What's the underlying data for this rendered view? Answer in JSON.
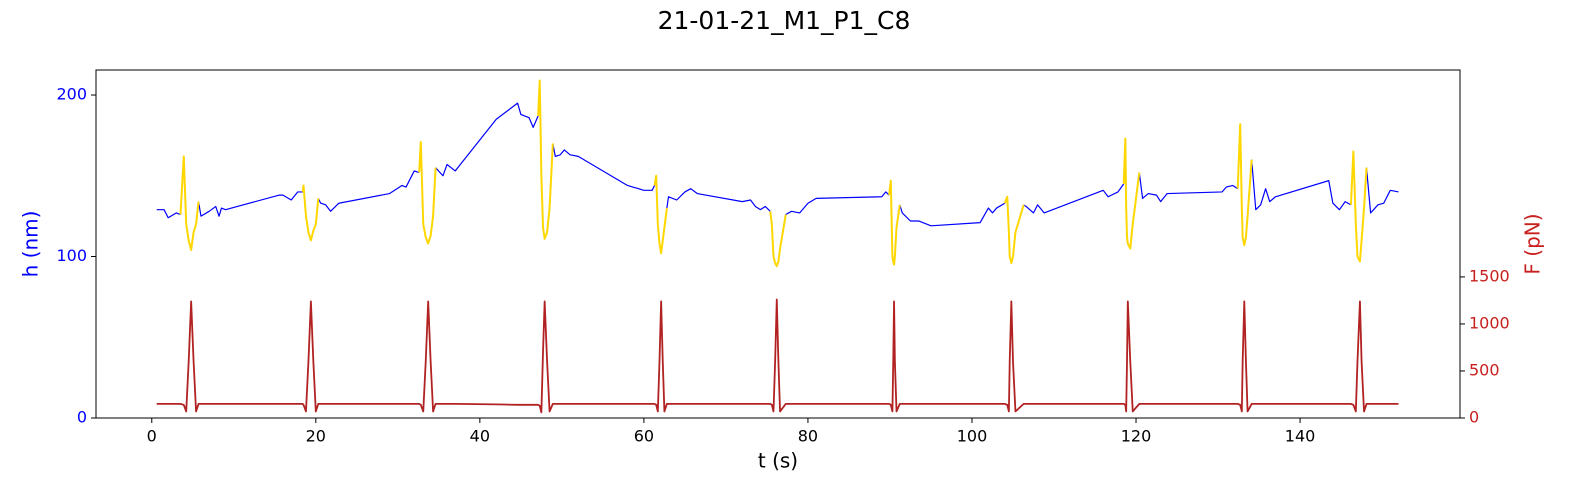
{
  "chart_data": {
    "type": "line",
    "title": "21-01-21_M1_P1_C8",
    "xlabel": "t (s)",
    "ylabel": "h (nm)",
    "y2label": "F (pN)",
    "ycolor": "#0000ff",
    "y2color": "#c8201e",
    "xlim": [
      -6.8,
      159.5
    ],
    "xticks": [
      0,
      20,
      40,
      60,
      80,
      100,
      120,
      140
    ],
    "ylim": [
      0,
      215.5
    ],
    "yticks": [
      0,
      100,
      200
    ],
    "y2lim": [
      0,
      3700
    ],
    "y2ticks": [
      0,
      500,
      1000,
      1500
    ],
    "x": [
      0.6,
      1.5,
      2.0,
      3.0,
      3.5,
      3.9,
      4.2,
      4.5,
      4.8,
      5.1,
      5.4,
      5.7,
      6.0,
      7.0,
      7.8,
      8.2,
      8.5,
      9.0,
      15.5,
      16.0,
      17.0,
      17.8,
      18.4,
      18.5,
      18.8,
      19.1,
      19.4,
      19.7,
      20.0,
      20.3,
      20.6,
      21.2,
      21.8,
      22.8,
      29.0,
      30.5,
      31.0,
      32.0,
      32.6,
      32.8,
      33.1,
      33.4,
      33.7,
      34.0,
      34.3,
      34.6,
      35.5,
      36.0,
      37.0,
      42.0,
      44.6,
      45.0,
      46.0,
      46.5,
      47.1,
      47.3,
      47.5,
      47.7,
      47.9,
      48.2,
      48.5,
      48.9,
      49.2,
      49.8,
      50.3,
      51.0,
      52.0,
      58.0,
      60.0,
      61.0,
      61.3,
      61.5,
      61.7,
      61.9,
      62.1,
      62.3,
      62.5,
      62.8,
      63.0,
      64.0,
      65.0,
      65.7,
      66.5,
      72.0,
      73.0,
      73.6,
      74.2,
      74.8,
      75.4,
      75.6,
      75.8,
      76.0,
      76.2,
      76.4,
      76.6,
      77.3,
      78.0,
      79.0,
      80.0,
      81.0,
      89.0,
      89.5,
      89.9,
      90.1,
      90.3,
      90.4,
      90.5,
      90.6,
      90.8,
      91.2,
      91.5,
      92.5,
      93.5,
      95.0,
      101.0,
      102.0,
      102.5,
      103.0,
      104.0,
      104.3,
      104.5,
      104.6,
      104.8,
      105.0,
      105.3,
      106.3,
      106.6,
      107.5,
      108.0,
      108.8,
      116.0,
      116.6,
      117.8,
      118.5,
      118.7,
      118.8,
      118.9,
      119.0,
      119.3,
      119.6,
      120.4,
      120.8,
      121.5,
      122.5,
      123.0,
      123.8,
      130.5,
      131.0,
      131.8,
      132.4,
      132.7,
      132.9,
      133.0,
      133.2,
      133.4,
      133.6,
      134.1,
      134.6,
      135.2,
      135.8,
      136.3,
      137.0,
      143.5,
      144.0,
      144.8,
      145.5,
      146.2,
      146.5,
      146.8,
      147.0,
      147.3,
      147.5,
      147.8,
      148.1,
      148.6,
      149.5,
      150.2,
      151.0,
      152.0
    ],
    "series": [
      {
        "color": "#0000ff",
        "width": 1.2,
        "values": [
          129,
          129,
          124,
          127,
          126,
          null,
          null,
          null,
          null,
          null,
          null,
          134,
          125,
          128,
          131,
          125,
          130,
          129,
          138,
          138,
          135,
          140,
          140,
          null,
          null,
          null,
          null,
          null,
          null,
          136,
          133,
          132,
          128,
          133,
          139,
          144,
          143,
          153,
          152,
          null,
          null,
          null,
          null,
          null,
          null,
          155,
          150,
          157,
          153,
          185,
          195,
          188,
          186,
          180,
          187,
          null,
          null,
          null,
          null,
          null,
          null,
          170,
          162,
          163,
          166,
          163,
          162,
          144,
          141,
          141,
          144,
          null,
          null,
          null,
          null,
          null,
          null,
          130,
          137,
          135,
          140,
          142,
          139,
          134,
          135,
          131,
          129,
          131,
          128,
          null,
          null,
          null,
          null,
          null,
          null,
          126,
          128,
          127,
          133,
          136,
          137,
          140,
          138,
          null,
          null,
          null,
          null,
          null,
          null,
          132,
          127,
          122,
          122,
          119,
          121,
          130,
          127,
          130,
          133,
          null,
          null,
          null,
          null,
          null,
          null,
          132,
          131,
          127,
          132,
          127,
          141,
          137,
          140,
          145,
          null,
          null,
          null,
          null,
          null,
          null,
          152,
          136,
          139,
          138,
          134,
          139,
          140,
          143,
          144,
          142,
          null,
          null,
          null,
          null,
          null,
          null,
          160,
          129,
          132,
          142,
          134,
          137,
          147,
          133,
          129,
          134,
          132,
          null,
          null,
          null,
          null,
          null,
          null,
          155,
          127,
          132,
          133,
          141,
          140
        ]
      },
      {
        "color": "#ffd700",
        "width": 2,
        "values": [
          null,
          null,
          null,
          null,
          126,
          162,
          120,
          110,
          104,
          115,
          120,
          134,
          null,
          null,
          null,
          null,
          null,
          null,
          null,
          null,
          null,
          null,
          140,
          144,
          125,
          115,
          110,
          116,
          120,
          136,
          null,
          null,
          null,
          null,
          null,
          null,
          null,
          null,
          152,
          171,
          120,
          112,
          108,
          113,
          125,
          155,
          null,
          null,
          null,
          null,
          null,
          null,
          null,
          null,
          187,
          209,
          150,
          118,
          111,
          115,
          130,
          170,
          null,
          null,
          null,
          null,
          null,
          null,
          null,
          null,
          144,
          150,
          120,
          108,
          102,
          110,
          118,
          130,
          null,
          null,
          null,
          null,
          null,
          null,
          null,
          null,
          null,
          null,
          128,
          120,
          100,
          96,
          94,
          97,
          105,
          126,
          null,
          null,
          null,
          null,
          null,
          null,
          138,
          147,
          100,
          97,
          95,
          100,
          118,
          132,
          null,
          null,
          null,
          null,
          null,
          null,
          null,
          null,
          133,
          137,
          115,
          100,
          96,
          100,
          115,
          132,
          null,
          null,
          null,
          null,
          null,
          null,
          null,
          145,
          173,
          130,
          112,
          108,
          105,
          120,
          152,
          null,
          null,
          null,
          null,
          null,
          null,
          null,
          null,
          142,
          182,
          130,
          112,
          107,
          112,
          125,
          160,
          null,
          null,
          null,
          null,
          null,
          null,
          null,
          null,
          null,
          132,
          165,
          120,
          100,
          97,
          110,
          130,
          155,
          null,
          null,
          null,
          null,
          null
        ]
      },
      {
        "color": "#b22222",
        "width": 1.8,
        "axis": "y2",
        "values": [
          150,
          150,
          150,
          150,
          150,
          140,
          70,
          600,
          1240,
          600,
          70,
          150,
          150,
          150,
          150,
          150,
          150,
          150,
          150,
          150,
          150,
          150,
          150,
          140,
          70,
          600,
          1240,
          600,
          70,
          150,
          150,
          150,
          150,
          150,
          150,
          150,
          150,
          150,
          150,
          140,
          70,
          600,
          1240,
          600,
          70,
          150,
          150,
          150,
          150,
          145,
          140,
          140,
          140,
          140,
          140,
          130,
          60,
          700,
          1240,
          600,
          70,
          150,
          150,
          150,
          150,
          150,
          150,
          150,
          150,
          150,
          150,
          140,
          70,
          600,
          1240,
          600,
          70,
          150,
          150,
          150,
          150,
          150,
          150,
          150,
          150,
          150,
          150,
          150,
          150,
          140,
          70,
          600,
          1260,
          600,
          70,
          150,
          150,
          150,
          150,
          150,
          150,
          150,
          150,
          140,
          70,
          600,
          1240,
          600,
          70,
          150,
          150,
          150,
          150,
          150,
          150,
          150,
          150,
          150,
          150,
          140,
          70,
          600,
          1240,
          600,
          70,
          150,
          150,
          150,
          150,
          150,
          150,
          150,
          150,
          150,
          140,
          70,
          600,
          1240,
          600,
          70,
          150,
          150,
          150,
          150,
          150,
          150,
          150,
          150,
          150,
          150,
          140,
          70,
          600,
          1240,
          600,
          70,
          150,
          150,
          150,
          150,
          150,
          150,
          150,
          150,
          150,
          150,
          150,
          140,
          70,
          600,
          1240,
          600,
          70,
          150,
          150,
          150,
          150,
          150,
          150
        ]
      }
    ]
  }
}
